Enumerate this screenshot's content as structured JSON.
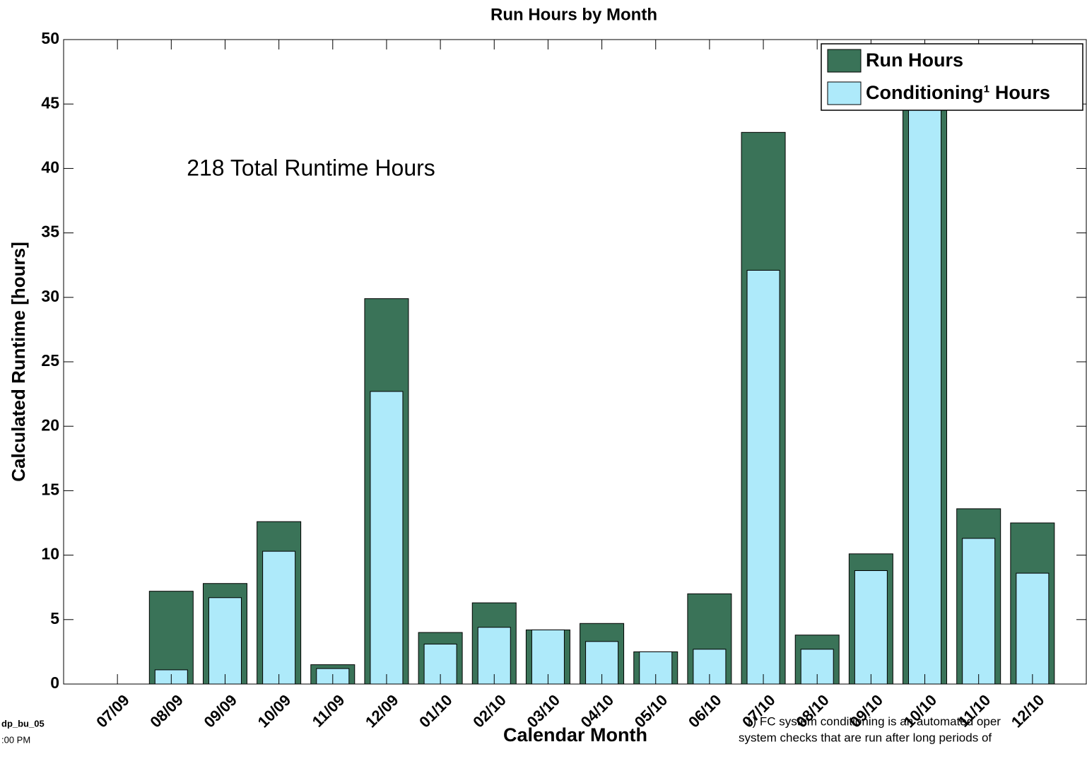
{
  "chart_data": {
    "type": "bar",
    "title": "Run Hours by Month",
    "y_label": "Calculated Runtime [hours]",
    "x_label": "Calendar Month",
    "annotation": "218 Total Runtime Hours",
    "footnote": [
      "1) FC system conditioning is an automated oper",
      "system checks that are run after long periods of"
    ],
    "side_text": [
      "dp_bu_05",
      ":00 PM"
    ],
    "categories": [
      "07/09",
      "08/09",
      "09/09",
      "10/09",
      "11/09",
      "12/09",
      "01/10",
      "02/10",
      "03/10",
      "04/10",
      "05/10",
      "06/10",
      "07/10",
      "08/10",
      "09/10",
      "10/10",
      "11/10",
      "12/10"
    ],
    "series": [
      {
        "name": "Run Hours",
        "color": "#3a7358",
        "values": [
          0,
          7.2,
          7.8,
          12.6,
          1.5,
          29.9,
          4.0,
          6.3,
          4.2,
          4.7,
          2.5,
          7.0,
          42.8,
          3.8,
          10.1,
          47.5,
          13.6,
          12.5
        ]
      },
      {
        "name": "Conditioning¹ Hours",
        "color": "#aeeafa",
        "values": [
          0,
          1.1,
          6.7,
          10.3,
          1.2,
          22.7,
          3.1,
          4.4,
          4.2,
          3.3,
          2.5,
          2.7,
          32.1,
          2.7,
          8.8,
          46,
          11.3,
          8.6
        ]
      }
    ],
    "ylim": [
      0,
      50
    ],
    "yticks": [
      0,
      5,
      10,
      15,
      20,
      25,
      30,
      35,
      40,
      45,
      50
    ],
    "legend": "upper right",
    "grid": false
  }
}
